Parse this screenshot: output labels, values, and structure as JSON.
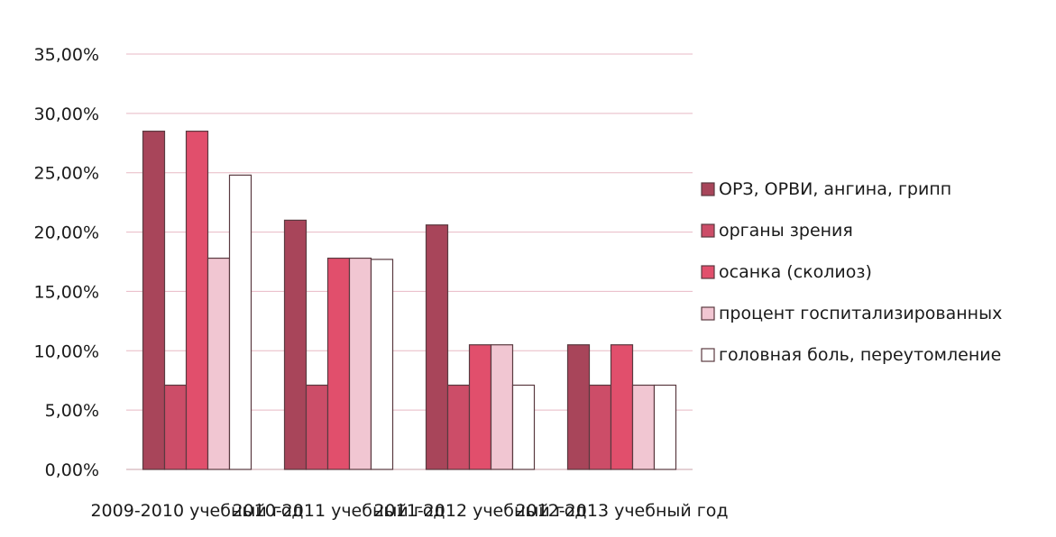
{
  "chart_data": {
    "type": "bar",
    "title": "",
    "xlabel": "",
    "ylabel": "",
    "ylim": [
      0,
      0.35
    ],
    "y_ticks": [
      "0,00%",
      "5,00%",
      "10,00%",
      "15,00%",
      "20,00%",
      "25,00%",
      "30,00%",
      "35,00%"
    ],
    "grid": true,
    "legend_position": "right",
    "categories": [
      "2009-2010 учебный год",
      "2010-2011 учебный год",
      "2011-2012 учебный год",
      "2012-2013 учебный год"
    ],
    "series": [
      {
        "name": "ОРЗ, ОРВИ, ангина, грипп",
        "color": "#a8455a",
        "values": [
          0.285,
          0.21,
          0.206,
          0.105
        ]
      },
      {
        "name": "органы зрения",
        "color": "#cc4d68",
        "values": [
          0.071,
          0.071,
          0.071,
          0.071
        ]
      },
      {
        "name": "осанка (сколиоз)",
        "color": "#e14f6c",
        "values": [
          0.285,
          0.178,
          0.105,
          0.105
        ]
      },
      {
        "name": "процент госпитализированных",
        "color": "#f1c6d2",
        "values": [
          0.178,
          0.178,
          0.105,
          0.071
        ]
      },
      {
        "name": "головная боль, переутомление",
        "color": "#ffffff",
        "values": [
          0.248,
          0.177,
          0.071,
          0.071
        ]
      }
    ]
  }
}
